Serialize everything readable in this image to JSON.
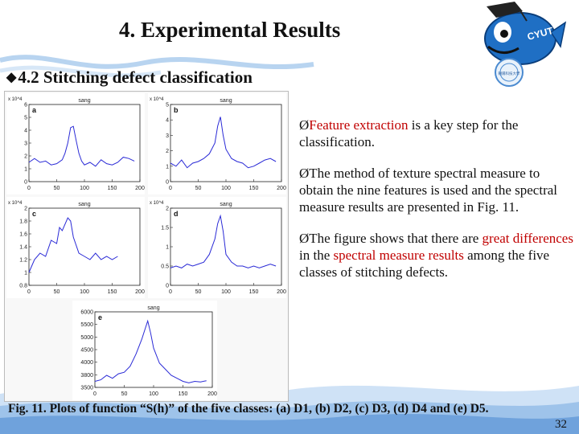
{
  "slide": {
    "title": "4. Experimental Results",
    "subtitle": "4.2 Stitching defect classification",
    "subtitle_marker": "◆",
    "page_number": "32"
  },
  "mascot": {
    "logo_text": "CYUT",
    "seal_text": "朝陽科技大學"
  },
  "bullets": [
    {
      "marker": "Ø",
      "parts": [
        {
          "text": "Feature extraction",
          "color": "#c00000"
        },
        {
          "text": " is a key step for the classification.",
          "color": "#111111"
        }
      ]
    },
    {
      "marker": "Ø",
      "parts": [
        {
          "text": "The method of texture spectral measure to obtain the nine features is used and the spectral measure results are  presented  in Fig. 11.",
          "color": "#111111"
        }
      ]
    },
    {
      "marker": "Ø",
      "parts": [
        {
          "text": "The figure shows that there are ",
          "color": "#111111"
        },
        {
          "text": "great differences",
          "color": "#c00000"
        },
        {
          "text": " in the ",
          "color": "#111111"
        },
        {
          "text": "spectral measure results",
          "color": "#c00000"
        },
        {
          "text": " among the five classes of stitching defects.",
          "color": "#111111"
        }
      ]
    }
  ],
  "caption": "Fig. 11. Plots of function “S(h)” of the five classes: (a) D1, (b) D2, (c) D3, (d) D4 and (e) D5.",
  "colors": {
    "line": "#2a2ad6",
    "accent_red": "#c00000",
    "wave_blue": "#9ec3ea"
  },
  "chart_data": [
    {
      "type": "line",
      "panel": "a",
      "title": "sang",
      "exponent": "x 10^4",
      "xticks": [
        "0",
        "50",
        "100",
        "150",
        "200"
      ],
      "yticks": [
        "0",
        "1",
        "2",
        "3",
        "4",
        "5",
        "6"
      ],
      "xlim": [
        0,
        200
      ],
      "ylim": [
        0,
        6
      ],
      "x": [
        0,
        10,
        20,
        30,
        40,
        50,
        60,
        65,
        70,
        75,
        80,
        85,
        90,
        95,
        100,
        110,
        120,
        130,
        140,
        150,
        160,
        170,
        180,
        190
      ],
      "y": [
        1.5,
        1.8,
        1.5,
        1.6,
        1.3,
        1.4,
        1.7,
        2.2,
        3.0,
        4.2,
        4.3,
        3.2,
        2.2,
        1.6,
        1.3,
        1.5,
        1.2,
        1.7,
        1.4,
        1.3,
        1.5,
        1.9,
        1.8,
        1.6
      ]
    },
    {
      "type": "line",
      "panel": "b",
      "title": "sang",
      "exponent": "x 10^4",
      "xticks": [
        "0",
        "50",
        "100",
        "150",
        "200"
      ],
      "yticks": [
        "0",
        "1",
        "2",
        "3",
        "4",
        "5"
      ],
      "xlim": [
        0,
        200
      ],
      "ylim": [
        0,
        5
      ],
      "x": [
        0,
        10,
        20,
        30,
        40,
        50,
        60,
        70,
        80,
        85,
        90,
        95,
        100,
        110,
        120,
        130,
        140,
        150,
        160,
        170,
        180,
        190
      ],
      "y": [
        1.2,
        1.0,
        1.4,
        0.9,
        1.2,
        1.3,
        1.5,
        1.8,
        2.5,
        3.6,
        4.2,
        3.0,
        2.1,
        1.5,
        1.3,
        1.2,
        0.9,
        1.0,
        1.2,
        1.4,
        1.5,
        1.3
      ]
    },
    {
      "type": "line",
      "panel": "c",
      "title": "sang",
      "exponent": "x 10^4",
      "xticks": [
        "0",
        "50",
        "100",
        "150",
        "200"
      ],
      "yticks": [
        "0.8",
        "1",
        "1.2",
        "1.4",
        "1.6",
        "1.8",
        "2"
      ],
      "xlim": [
        0,
        200
      ],
      "ylim": [
        0.8,
        2.0
      ],
      "x": [
        0,
        10,
        20,
        30,
        40,
        50,
        55,
        60,
        70,
        75,
        80,
        90,
        100,
        110,
        120,
        130,
        140,
        150,
        160
      ],
      "y": [
        1.0,
        1.2,
        1.3,
        1.25,
        1.5,
        1.45,
        1.7,
        1.65,
        1.85,
        1.8,
        1.55,
        1.3,
        1.25,
        1.2,
        1.3,
        1.2,
        1.25,
        1.2,
        1.25
      ]
    },
    {
      "type": "line",
      "panel": "d",
      "title": "sang",
      "exponent": "x 10^4",
      "xticks": [
        "0",
        "50",
        "100",
        "150",
        "200"
      ],
      "yticks": [
        "0",
        "0.5",
        "1",
        "1.5",
        "2"
      ],
      "xlim": [
        0,
        200
      ],
      "ylim": [
        0,
        2
      ],
      "x": [
        0,
        10,
        20,
        30,
        40,
        50,
        60,
        70,
        80,
        85,
        90,
        95,
        100,
        110,
        120,
        130,
        140,
        150,
        160,
        170,
        180,
        190
      ],
      "y": [
        0.45,
        0.5,
        0.45,
        0.55,
        0.5,
        0.55,
        0.6,
        0.8,
        1.2,
        1.6,
        1.8,
        1.4,
        0.8,
        0.6,
        0.5,
        0.5,
        0.45,
        0.5,
        0.45,
        0.5,
        0.55,
        0.5
      ]
    },
    {
      "type": "line",
      "panel": "e",
      "title": "sang",
      "exponent": "",
      "xticks": [
        "0",
        "50",
        "100",
        "150",
        "200"
      ],
      "yticks": [
        "3500",
        "3800",
        "4000",
        "4500",
        "5000",
        "5500",
        "6000"
      ],
      "xlim": [
        0,
        200
      ],
      "ylim": [
        3500,
        6000
      ],
      "x": [
        0,
        10,
        20,
        30,
        40,
        50,
        60,
        70,
        80,
        85,
        90,
        95,
        100,
        110,
        120,
        130,
        140,
        150,
        160,
        170,
        180,
        190
      ],
      "y": [
        3700,
        3750,
        3900,
        3800,
        3950,
        4000,
        4200,
        4600,
        5100,
        5400,
        5700,
        5300,
        4800,
        4300,
        4100,
        3900,
        3800,
        3700,
        3650,
        3700,
        3680,
        3720
      ]
    }
  ]
}
